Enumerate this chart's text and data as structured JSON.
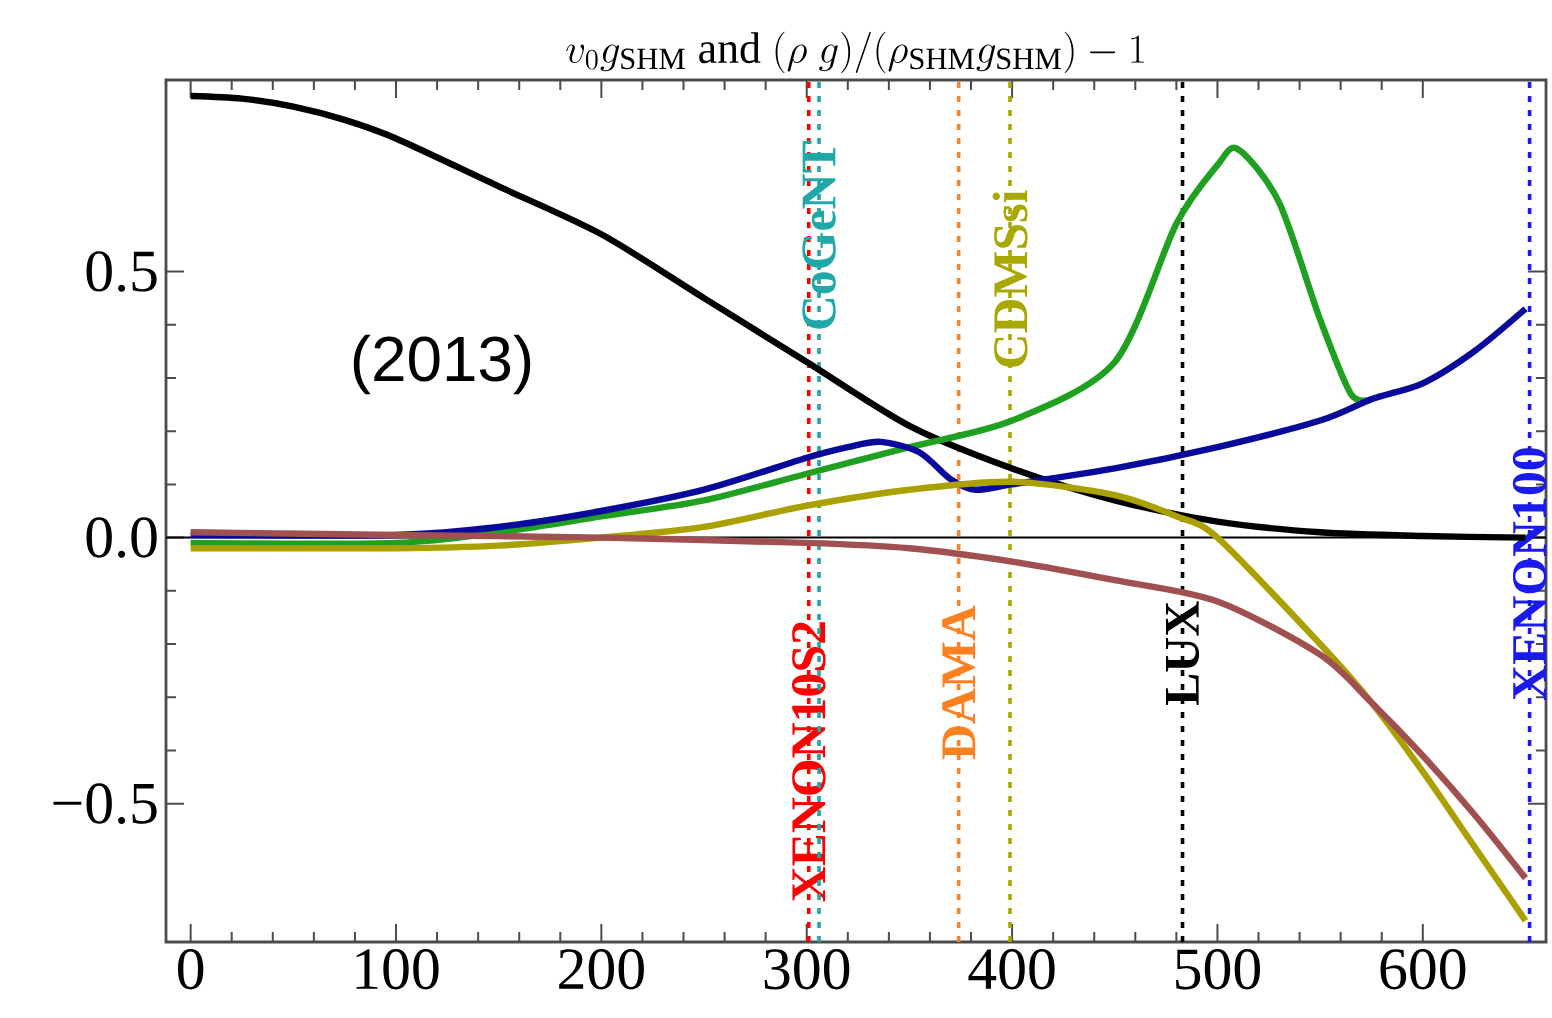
{
  "chart_data": {
    "type": "line",
    "title": "v_0 g_{\\mathrm{SHM}}\\mbox{ and }(\\rho\\ g)/(\\rho_{\\mathrm{SHM}} g_{\\mathrm{SHM}}) - 1",
    "annotations": [
      "(2013)"
    ],
    "xlim": [
      -12,
      660
    ],
    "ylim": [
      -0.76,
      0.86
    ],
    "xticks": [
      0,
      100,
      200,
      300,
      400,
      500,
      600
    ],
    "yticks": [
      {
        "value": -0.5,
        "label": "−0.5"
      },
      {
        "value": 0,
        "label": "0.0"
      },
      {
        "value": 0.5,
        "label": "0.5"
      }
    ],
    "series": [
      {
        "color": "#000000",
        "x": [
          0,
          25,
          50,
          75,
          100,
          150,
          200,
          250,
          300,
          350,
          400,
          450,
          500,
          550,
          600,
          650
        ],
        "values": [
          0.83,
          0.825,
          0.81,
          0.785,
          0.75,
          0.66,
          0.57,
          0.45,
          0.33,
          0.21,
          0.13,
          0.07,
          0.03,
          0.01,
          0.003,
          0.0
        ]
      },
      {
        "color": "#20a020",
        "x": [
          0,
          100,
          150,
          200,
          250,
          300,
          350,
          400,
          450,
          480,
          500,
          510,
          530,
          550,
          565,
          575
        ],
        "values": [
          -0.01,
          -0.01,
          0.01,
          0.04,
          0.07,
          0.12,
          0.17,
          0.22,
          0.33,
          0.59,
          0.7,
          0.73,
          0.63,
          0.41,
          0.27,
          0.26
        ]
      },
      {
        "color": "#0a0a9a",
        "x": [
          0,
          100,
          150,
          200,
          250,
          300,
          320,
          336,
          355,
          370,
          382,
          400,
          450,
          500,
          550,
          575,
          600,
          625,
          650
        ],
        "values": [
          0.005,
          0.005,
          0.02,
          0.05,
          0.09,
          0.15,
          0.17,
          0.18,
          0.16,
          0.11,
          0.09,
          0.1,
          0.13,
          0.17,
          0.22,
          0.26,
          0.29,
          0.35,
          0.43
        ]
      },
      {
        "color": "#aaa000",
        "x": [
          0,
          100,
          150,
          200,
          250,
          300,
          350,
          400,
          450,
          480,
          500,
          550,
          575,
          600,
          625,
          650
        ],
        "values": [
          -0.02,
          -0.02,
          -0.015,
          0.0,
          0.02,
          0.06,
          0.09,
          0.105,
          0.08,
          0.04,
          0.0,
          -0.2,
          -0.31,
          -0.44,
          -0.58,
          -0.72
        ]
      },
      {
        "color": "#a05050",
        "x": [
          0,
          100,
          200,
          300,
          350,
          400,
          450,
          500,
          550,
          575,
          600,
          625,
          650
        ],
        "values": [
          0.01,
          0.005,
          0.0,
          -0.01,
          -0.02,
          -0.045,
          -0.08,
          -0.12,
          -0.22,
          -0.31,
          -0.41,
          -0.52,
          -0.64
        ]
      }
    ],
    "ref_lines": [
      {
        "axis": "y",
        "value": 0,
        "color": "#000000",
        "line_style": "solid"
      },
      {
        "axis": "x",
        "value": 301,
        "label": "XENON10S2",
        "color": "#ff0000",
        "line_style": "dotted"
      },
      {
        "axis": "x",
        "value": 306,
        "label": "CoGeNT",
        "color": "#20a8a8",
        "line_style": "dotted"
      },
      {
        "axis": "x",
        "value": 374,
        "label": "DAMA",
        "color": "#ff8020",
        "line_style": "dotted"
      },
      {
        "axis": "x",
        "value": 399,
        "label": "CDMSsi",
        "color": "#a8a800",
        "line_style": "dotted"
      },
      {
        "axis": "x",
        "value": 483,
        "label": "LUX",
        "color": "#000000",
        "line_style": "dotted"
      },
      {
        "axis": "x",
        "value": 652,
        "label": "XENON100",
        "color": "#1a1aee",
        "line_style": "dotted"
      }
    ]
  }
}
